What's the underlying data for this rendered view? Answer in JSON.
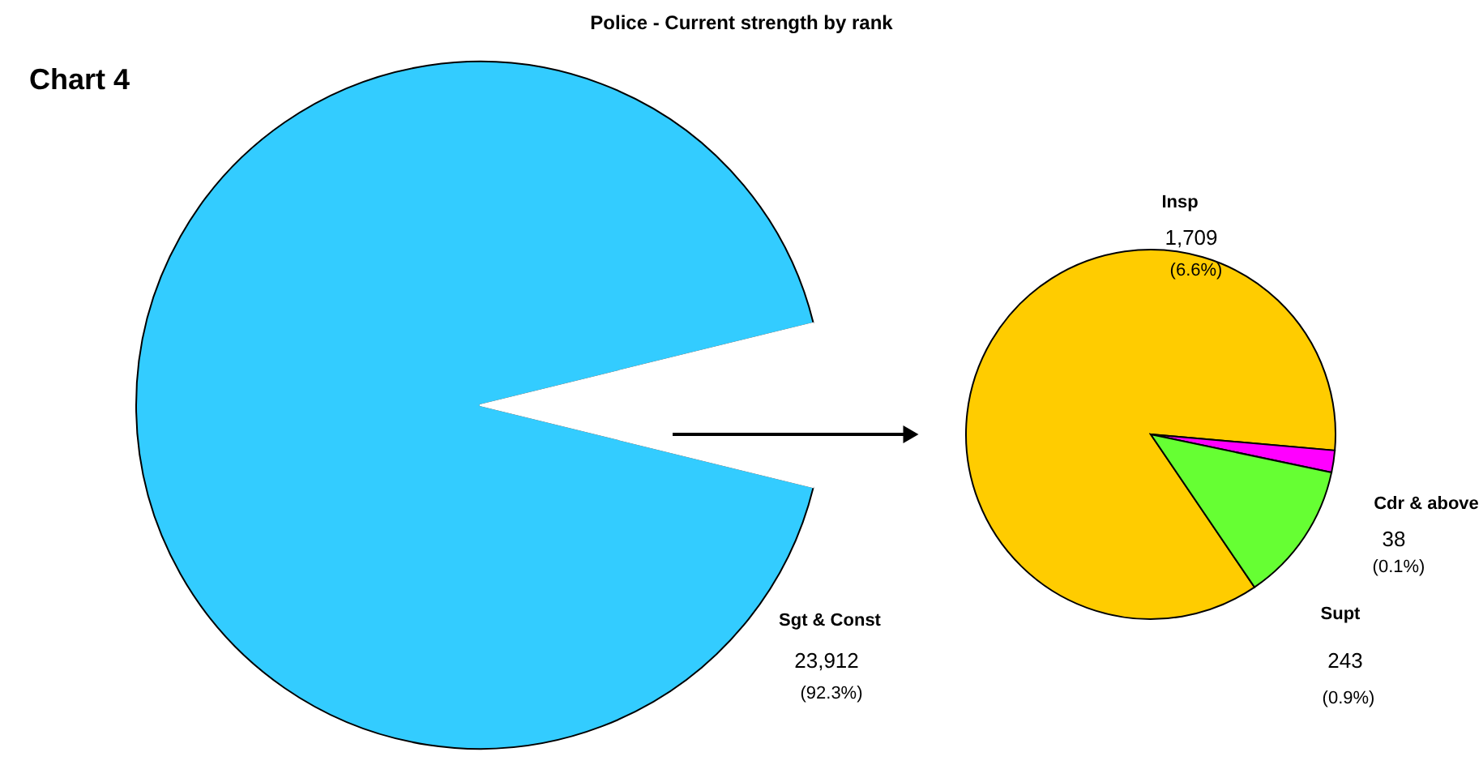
{
  "chart_data": [
    {
      "type": "pie",
      "title": "Police - Current strength by rank",
      "annotations": [
        "Chart 4"
      ],
      "categories": [
        "Sgt & Const",
        null
      ],
      "values": [
        23912,
        1990
      ],
      "colors": [
        "#33ccff",
        "#ffffff"
      ],
      "value_labels": [
        "23,912\n(92.3%)",
        null
      ]
    },
    {
      "type": "pie",
      "categories": [
        "Insp",
        "Cdr & above",
        "Supt"
      ],
      "values": [
        1709,
        38,
        243
      ],
      "colors": [
        "#ffcc00",
        "#ff00ff",
        "#66ff33"
      ],
      "value_labels": [
        "1,709\n(6.6%)",
        "38\n(0.1%)",
        "243\n(0.9%)"
      ]
    }
  ]
}
